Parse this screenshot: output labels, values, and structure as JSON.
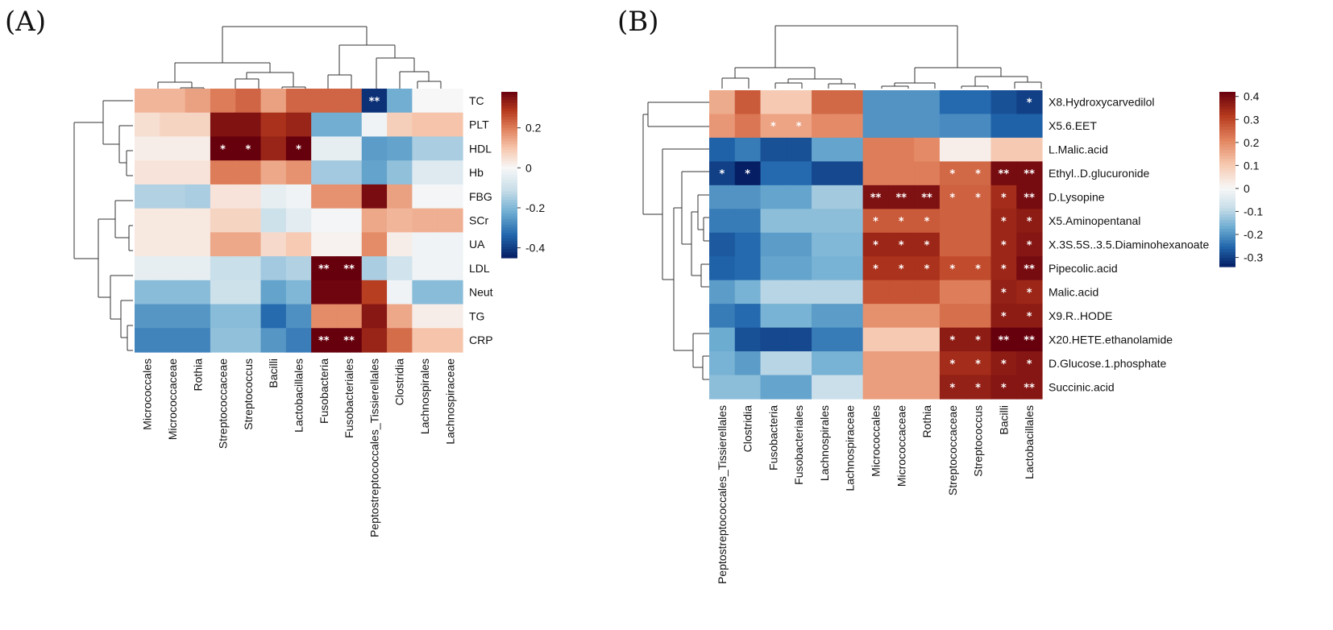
{
  "chart_data": [
    {
      "type": "heatmap",
      "panel": "(A)",
      "rows": [
        "TC",
        "PLT",
        "HDL",
        "Hb",
        "FBG",
        "SCr",
        "UA",
        "LDL",
        "Neut",
        "TG",
        "CRP"
      ],
      "cols": [
        "Micrococcales",
        "Micrococcaceae",
        "Rothia",
        "Streptococcaceae",
        "Streptococcus",
        "Bacilli",
        "Lactobacillales",
        "Fusobacteria",
        "Fusobacteriales",
        "Peptostreptococcales_Tissierellales",
        "Clostridia",
        "Lachnospirales",
        "Lachnospiraceae"
      ],
      "values": [
        [
          0.12,
          0.12,
          0.15,
          0.2,
          0.23,
          0.15,
          0.23,
          0.23,
          0.23,
          -0.42,
          -0.22,
          0.0,
          0.0
        ],
        [
          0.05,
          0.07,
          0.07,
          0.35,
          0.35,
          0.3,
          0.32,
          -0.22,
          -0.22,
          -0.02,
          0.08,
          0.1,
          0.1
        ],
        [
          0.02,
          0.02,
          0.02,
          0.38,
          0.38,
          0.32,
          0.38,
          -0.04,
          -0.04,
          -0.25,
          -0.24,
          -0.15,
          -0.15
        ],
        [
          0.04,
          0.04,
          0.04,
          0.2,
          0.2,
          0.14,
          0.17,
          -0.16,
          -0.16,
          -0.24,
          -0.18,
          -0.06,
          -0.06
        ],
        [
          -0.14,
          -0.14,
          -0.15,
          0.04,
          0.04,
          -0.04,
          -0.02,
          0.17,
          0.17,
          0.36,
          0.15,
          -0.01,
          -0.01
        ],
        [
          0.03,
          0.03,
          0.03,
          0.07,
          0.07,
          -0.1,
          -0.05,
          -0.01,
          -0.01,
          0.14,
          0.12,
          0.13,
          0.13
        ],
        [
          0.03,
          0.03,
          0.03,
          0.14,
          0.14,
          0.06,
          0.09,
          0.01,
          0.01,
          0.18,
          0.02,
          -0.02,
          -0.02
        ],
        [
          -0.04,
          -0.04,
          -0.04,
          -0.11,
          -0.11,
          -0.16,
          -0.14,
          0.45,
          0.45,
          -0.15,
          -0.09,
          -0.02,
          -0.02
        ],
        [
          -0.19,
          -0.19,
          -0.19,
          -0.1,
          -0.1,
          -0.24,
          -0.2,
          0.37,
          0.37,
          0.28,
          -0.02,
          -0.19,
          -0.19
        ],
        [
          -0.26,
          -0.26,
          -0.26,
          -0.19,
          -0.19,
          -0.33,
          -0.27,
          0.18,
          0.18,
          0.34,
          0.14,
          0.02,
          0.02
        ],
        [
          -0.29,
          -0.29,
          -0.29,
          -0.18,
          -0.18,
          -0.26,
          -0.3,
          0.45,
          0.45,
          0.32,
          0.22,
          0.1,
          0.1
        ]
      ],
      "significance": [
        [
          "",
          "",
          "",
          "",
          "",
          "",
          "",
          "",
          "",
          "**",
          "",
          "",
          ""
        ],
        [
          "",
          "",
          "",
          "",
          "",
          "",
          "",
          "",
          "",
          "",
          "",
          "",
          ""
        ],
        [
          "",
          "",
          "",
          "*",
          "*",
          "",
          "*",
          "",
          "",
          "",
          "",
          "",
          ""
        ],
        [
          "",
          "",
          "",
          "",
          "",
          "",
          "",
          "",
          "",
          "",
          "",
          "",
          ""
        ],
        [
          "",
          "",
          "",
          "",
          "",
          "",
          "",
          "",
          "",
          "",
          "",
          "",
          ""
        ],
        [
          "",
          "",
          "",
          "",
          "",
          "",
          "",
          "",
          "",
          "",
          "",
          "",
          ""
        ],
        [
          "",
          "",
          "",
          "",
          "",
          "",
          "",
          "",
          "",
          "",
          "",
          "",
          ""
        ],
        [
          "",
          "",
          "",
          "",
          "",
          "",
          "",
          "**",
          "**",
          "",
          "",
          "",
          ""
        ],
        [
          "",
          "",
          "",
          "",
          "",
          "",
          "",
          "",
          "",
          "",
          "",
          "",
          ""
        ],
        [
          "",
          "",
          "",
          "",
          "",
          "",
          "",
          "",
          "",
          "",
          "",
          "",
          ""
        ],
        [
          "",
          "",
          "",
          "",
          "",
          "",
          "",
          "**",
          "**",
          "",
          "",
          "",
          ""
        ]
      ],
      "legend": {
        "ticks": [
          0.2,
          0,
          -0.2,
          -0.4
        ],
        "tick_labels": [
          "0.2",
          "0",
          "-0.2",
          "-0.4"
        ],
        "range": [
          -0.45,
          0.38
        ]
      }
    },
    {
      "type": "heatmap",
      "panel": "(B)",
      "rows": [
        "X8.Hydroxycarvedilol",
        "X5.6.EET",
        "L.Malic.acid",
        "Ethyl..D.glucuronide",
        "D.Lysopine",
        "X5.Aminopentanal",
        "X.3S.5S..3.5.Diaminohexanoate",
        "Pipecolic.acid",
        "Malic.acid",
        "X9.R..HODE",
        "X20.HETE.ethanolamide",
        "D.Glucose.1.phosphate",
        "Succinic.acid"
      ],
      "cols": [
        "Peptostreptococcales_Tissierellales",
        "Clostridia",
        "Fusobacteria",
        "Fusobacteriales",
        "Lachnospirales",
        "Lachnospiraceae",
        "Micrococcales",
        "Micrococcaceae",
        "Rothia",
        "Streptococcaceae",
        "Streptococcus",
        "Bacilli",
        "Lactobacillales"
      ],
      "values": [
        [
          0.15,
          0.27,
          0.1,
          0.1,
          0.25,
          0.25,
          -0.2,
          -0.2,
          -0.2,
          -0.25,
          -0.25,
          -0.28,
          -0.3
        ],
        [
          0.18,
          0.23,
          0.16,
          0.16,
          0.2,
          0.2,
          -0.2,
          -0.2,
          -0.2,
          -0.21,
          -0.21,
          -0.26,
          -0.26
        ],
        [
          -0.26,
          -0.23,
          -0.28,
          -0.28,
          -0.18,
          -0.18,
          0.22,
          0.22,
          0.2,
          0.02,
          0.02,
          0.1,
          0.1
        ],
        [
          -0.3,
          -0.34,
          -0.25,
          -0.25,
          -0.29,
          -0.29,
          0.22,
          0.22,
          0.22,
          0.25,
          0.25,
          0.4,
          0.4
        ],
        [
          -0.2,
          -0.2,
          -0.18,
          -0.18,
          -0.12,
          -0.12,
          0.39,
          0.39,
          0.39,
          0.26,
          0.26,
          0.34,
          0.4
        ],
        [
          -0.23,
          -0.23,
          -0.14,
          -0.14,
          -0.14,
          -0.14,
          0.27,
          0.27,
          0.27,
          0.26,
          0.26,
          0.35,
          0.37
        ],
        [
          -0.27,
          -0.25,
          -0.19,
          -0.19,
          -0.15,
          -0.15,
          0.35,
          0.35,
          0.35,
          0.26,
          0.26,
          0.35,
          0.38
        ],
        [
          -0.26,
          -0.25,
          -0.18,
          -0.18,
          -0.16,
          -0.16,
          0.33,
          0.33,
          0.33,
          0.29,
          0.29,
          0.35,
          0.4
        ],
        [
          -0.19,
          -0.16,
          -0.1,
          -0.1,
          -0.1,
          -0.1,
          0.28,
          0.28,
          0.28,
          0.22,
          0.22,
          0.36,
          0.35
        ],
        [
          -0.23,
          -0.25,
          -0.16,
          -0.16,
          -0.19,
          -0.19,
          0.19,
          0.19,
          0.19,
          0.24,
          0.24,
          0.37,
          0.37
        ],
        [
          -0.17,
          -0.28,
          -0.29,
          -0.29,
          -0.23,
          -0.23,
          0.1,
          0.1,
          0.1,
          0.37,
          0.37,
          0.42,
          0.42
        ],
        [
          -0.16,
          -0.19,
          -0.1,
          -0.1,
          -0.16,
          -0.16,
          0.17,
          0.17,
          0.17,
          0.34,
          0.34,
          0.37,
          0.38
        ],
        [
          -0.14,
          -0.14,
          -0.18,
          -0.18,
          -0.08,
          -0.08,
          0.17,
          0.17,
          0.17,
          0.36,
          0.36,
          0.38,
          0.38
        ]
      ],
      "significance": [
        [
          "",
          "",
          "",
          "",
          "",
          "",
          "",
          "",
          "",
          "",
          "",
          "",
          "*"
        ],
        [
          "",
          "",
          "*",
          "*",
          "",
          "",
          "",
          "",
          "",
          "",
          "",
          "",
          ""
        ],
        [
          "",
          "",
          "",
          "",
          "",
          "",
          "",
          "",
          "",
          "",
          "",
          "",
          ""
        ],
        [
          "*",
          "*",
          "",
          "",
          "",
          "",
          "",
          "",
          "",
          "*",
          "*",
          "**",
          "**"
        ],
        [
          "",
          "",
          "",
          "",
          "",
          "",
          "**",
          "**",
          "**",
          "*",
          "*",
          "*",
          "**"
        ],
        [
          "",
          "",
          "",
          "",
          "",
          "",
          "*",
          "*",
          "*",
          "",
          "",
          "*",
          "*"
        ],
        [
          "",
          "",
          "",
          "",
          "",
          "",
          "*",
          "*",
          "*",
          "",
          "",
          "*",
          "*"
        ],
        [
          "",
          "",
          "",
          "",
          "",
          "",
          "*",
          "*",
          "*",
          "*",
          "*",
          "*",
          "**"
        ],
        [
          "",
          "",
          "",
          "",
          "",
          "",
          "",
          "",
          "",
          "",
          "",
          "*",
          "*"
        ],
        [
          "",
          "",
          "",
          "",
          "",
          "",
          "",
          "",
          "",
          "",
          "",
          "*",
          "*"
        ],
        [
          "",
          "",
          "",
          "",
          "",
          "",
          "",
          "",
          "",
          "*",
          "*",
          "**",
          "**"
        ],
        [
          "",
          "",
          "",
          "",
          "",
          "",
          "",
          "",
          "",
          "*",
          "*",
          "*",
          "*"
        ],
        [
          "",
          "",
          "",
          "",
          "",
          "",
          "",
          "",
          "",
          "*",
          "*",
          "*",
          "**"
        ]
      ],
      "legend": {
        "ticks": [
          0.4,
          0.3,
          0.2,
          0.1,
          0,
          -0.1,
          -0.2,
          -0.3
        ],
        "tick_labels": [
          "0.4",
          "0.3",
          "0.2",
          "0.1",
          "0",
          "-0.1",
          "-0.2",
          "-0.3"
        ],
        "range": [
          -0.34,
          0.42
        ]
      }
    }
  ]
}
